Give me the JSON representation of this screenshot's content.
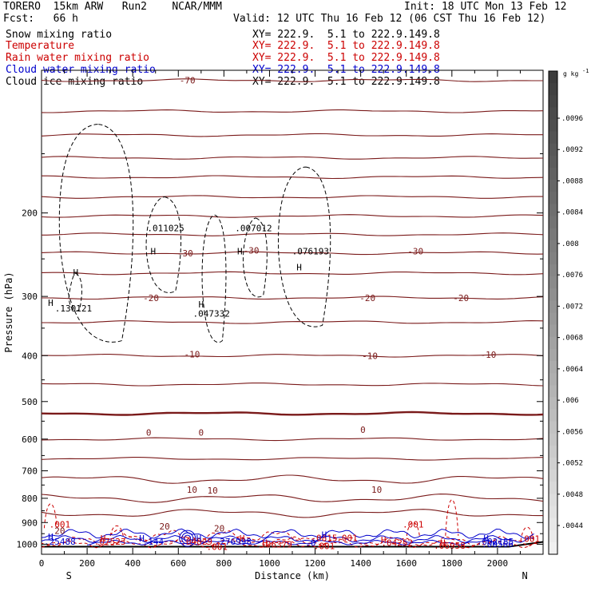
{
  "header": {
    "model": "TORERO  15km ARW   Run2    NCAR/MMM",
    "init": "Init: 18 UTC Mon 13 Feb 12",
    "fcst": "Fcst:   66 h",
    "valid": "Valid: 12 UTC Thu 16 Feb 12 (06 CST Thu 16 Feb 12)"
  },
  "fields": [
    {
      "name": "Snow mixing ratio",
      "color": "#000000"
    },
    {
      "name": "Temperature",
      "color": "#cc0000"
    },
    {
      "name": "Rain water mixing ratio",
      "color": "#cc0000"
    },
    {
      "name": "Cloud water mixing ratio",
      "color": "#0000cc"
    },
    {
      "name": "Cloud ice mixing ratio",
      "color": "#000000"
    }
  ],
  "xy_label": "XY= 222.9.  5.1 to 222.9.149.8",
  "chart_data": {
    "type": "contour-cross-section",
    "xlabel": "Distance (km)",
    "ylabel": "Pressure (hPa)",
    "xlim": [
      0,
      2200
    ],
    "ylim": [
      1050,
      100
    ],
    "x_ticks": [
      0,
      200,
      400,
      600,
      800,
      1000,
      1200,
      1400,
      1600,
      1800,
      2000
    ],
    "y_ticks": [
      200,
      300,
      400,
      500,
      600,
      700,
      800,
      900,
      1000
    ],
    "endpoints": {
      "left": "S",
      "right": "N"
    },
    "colorbar": {
      "unit": "g kg",
      "unit_exp": "-1",
      "ticks": [
        ".0096",
        ".0092",
        ".0088",
        ".0084",
        ".008",
        ".0076",
        ".0072",
        ".0068",
        ".0064",
        ".006",
        ".0056",
        ".0052",
        ".0048",
        ".0044"
      ]
    },
    "temperature_contours": [
      {
        "value": -70,
        "p": 105
      },
      {
        "value": null,
        "p": 122
      },
      {
        "value": null,
        "p": 137
      },
      {
        "value": null,
        "p": 153
      },
      {
        "value": null,
        "p": 168
      },
      {
        "value": null,
        "p": 185
      },
      {
        "value": null,
        "p": 203
      },
      {
        "value": null,
        "p": 222
      },
      {
        "value": -30,
        "p": 243
      },
      {
        "value": null,
        "p": 268
      },
      {
        "value": -20,
        "p": 302
      },
      {
        "value": null,
        "p": 340
      },
      {
        "value": -10,
        "p": 400
      },
      {
        "value": null,
        "p": 460
      },
      {
        "value": 0,
        "p": 530
      },
      {
        "value": null,
        "p": 600
      },
      {
        "value": 10,
        "p": 660
      },
      {
        "value": null,
        "p": 730
      },
      {
        "value": 20,
        "p": 800
      },
      {
        "value": null,
        "p": 860
      }
    ],
    "temperature_labels": [
      {
        "text": "-70",
        "x": 640,
        "p": 105
      },
      {
        "text": "-30",
        "x": 630,
        "p": 243
      },
      {
        "text": "-30",
        "x": 920,
        "p": 240
      },
      {
        "text": "-30",
        "x": 1640,
        "p": 241
      },
      {
        "text": "-20",
        "x": 480,
        "p": 302
      },
      {
        "text": "-20",
        "x": 1430,
        "p": 302
      },
      {
        "text": "-20",
        "x": 1840,
        "p": 302
      },
      {
        "text": "-10",
        "x": 660,
        "p": 397
      },
      {
        "text": "-10",
        "x": 1440,
        "p": 400
      },
      {
        "text": "-10",
        "x": 1960,
        "p": 398
      },
      {
        "text": "0",
        "x": 470,
        "p": 581
      },
      {
        "text": "0",
        "x": 700,
        "p": 581
      },
      {
        "text": "0",
        "x": 1410,
        "p": 573
      },
      {
        "text": "10",
        "x": 660,
        "p": 767
      },
      {
        "text": "10",
        "x": 750,
        "p": 770
      },
      {
        "text": "10",
        "x": 1470,
        "p": 767
      },
      {
        "text": "20",
        "x": 540,
        "p": 916
      },
      {
        "text": "20",
        "x": 780,
        "p": 925
      },
      {
        "text": "20",
        "x": 80,
        "p": 936
      }
    ],
    "snow_maxima": [
      {
        "text": ".130121",
        "x": 140,
        "p": 318
      },
      {
        "text": ".011025",
        "x": 545,
        "p": 215
      },
      {
        "text": ".047332",
        "x": 745,
        "p": 326
      },
      {
        "text": ".007012",
        "x": 930,
        "p": 215
      },
      {
        "text": ".076193",
        "x": 1180,
        "p": 241
      }
    ],
    "rain_labels": [
      {
        "text": ".001",
        "x": 80,
        "p": 907
      },
      {
        "text": ".07523",
        "x": 300,
        "p": 986
      },
      {
        "text": ".04829",
        "x": 680,
        "p": 986
      },
      {
        "text": ".06379",
        "x": 1030,
        "p": 1001
      },
      {
        "text": ".001",
        "x": 770,
        "p": 1012
      },
      {
        "text": ".001",
        "x": 1240,
        "p": 1009
      },
      {
        "text": ".04252",
        "x": 1560,
        "p": 993
      },
      {
        "text": ".06958",
        "x": 1790,
        "p": 1007
      },
      {
        "text": ".001",
        "x": 1630,
        "p": 907
      },
      {
        "text": ".001",
        "x": 2140,
        "p": 973
      },
      {
        "text": ".0815",
        "x": 1240,
        "p": 969
      },
      {
        "text": ".001",
        "x": 1340,
        "p": 969
      }
    ],
    "cloud_water_labels": [
      {
        "text": ".25488",
        "x": 80,
        "p": 986
      },
      {
        "text": ".144",
        "x": 490,
        "p": 986
      },
      {
        "text": ".276998",
        "x": 840,
        "p": 986
      },
      {
        "text": ".0",
        "x": 1180,
        "p": 993
      },
      {
        "text": ".002185",
        "x": 1990,
        "p": 986
      },
      {
        "text": ".00566",
        "x": 2000,
        "p": 999
      }
    ],
    "max_markers": [
      {
        "kind": "snow",
        "x": 150,
        "p": 267,
        "label": "H"
      },
      {
        "kind": "snow",
        "x": 490,
        "p": 241,
        "label": "H"
      },
      {
        "kind": "snow",
        "x": 700,
        "p": 312,
        "label": "H"
      },
      {
        "kind": "snow",
        "x": 870,
        "p": 241,
        "label": "H"
      },
      {
        "kind": "snow",
        "x": 1130,
        "p": 260,
        "label": "H"
      },
      {
        "kind": "snow",
        "x": 40,
        "p": 309,
        "label": "H"
      },
      {
        "kind": "cw",
        "x": 40,
        "p": 965,
        "label": "H"
      },
      {
        "kind": "rain",
        "x": 270,
        "p": 972,
        "label": "H"
      },
      {
        "kind": "cw",
        "x": 440,
        "p": 972,
        "label": "H"
      },
      {
        "kind": "cw",
        "x": 690,
        "p": 972,
        "label": "H"
      },
      {
        "kind": "rain",
        "x": 880,
        "p": 972,
        "label": "H"
      },
      {
        "kind": "rain",
        "x": 980,
        "p": 993,
        "label": "H"
      },
      {
        "kind": "cw",
        "x": 1240,
        "p": 955,
        "label": "H"
      },
      {
        "kind": "rain",
        "x": 1500,
        "p": 979,
        "label": "H"
      },
      {
        "kind": "rain",
        "x": 1760,
        "p": 993,
        "label": "H"
      },
      {
        "kind": "cw",
        "x": 1950,
        "p": 972,
        "label": "H"
      }
    ]
  }
}
